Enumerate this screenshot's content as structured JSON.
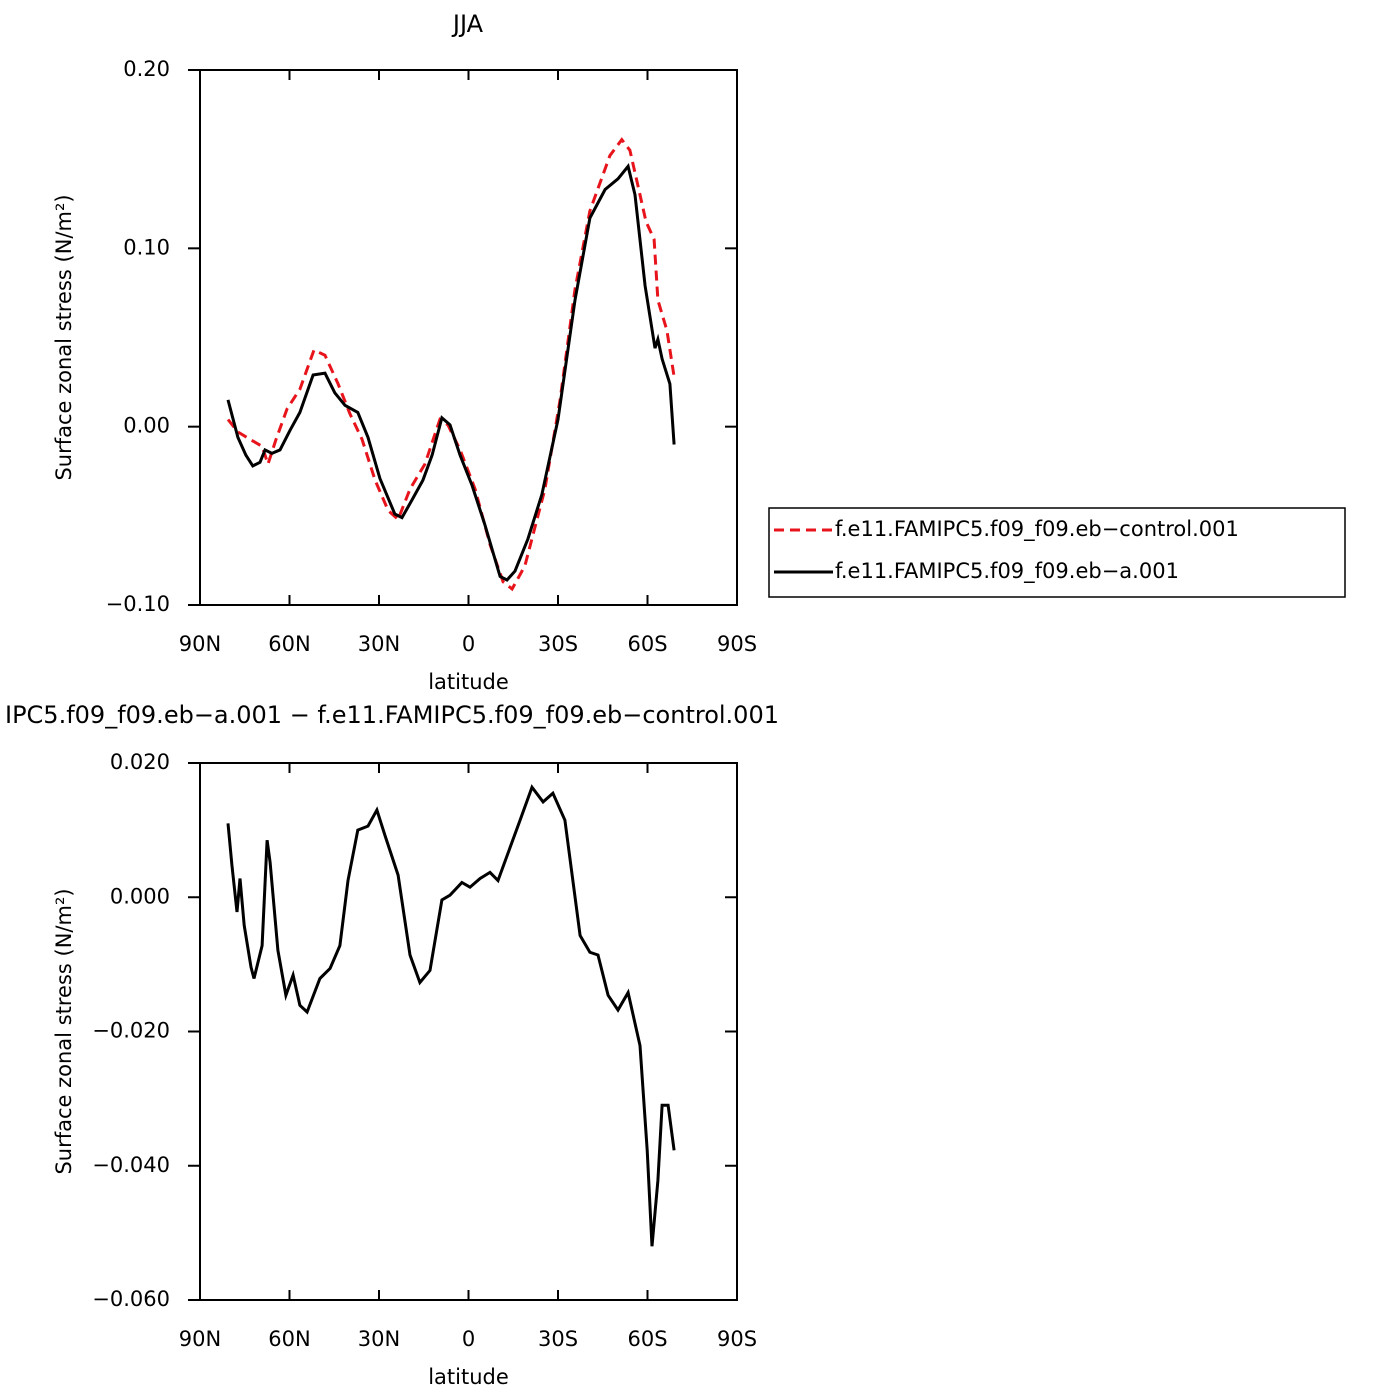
{
  "chart_data": [
    {
      "type": "line",
      "title": "JJA",
      "x_label": "latitude",
      "y_label": "Surface zonal stress (N/m²)",
      "xlim": [
        90,
        -90
      ],
      "xticks": [
        {
          "value": 90,
          "label": "90N"
        },
        {
          "value": 60,
          "label": "60N"
        },
        {
          "value": 30,
          "label": "30N"
        },
        0,
        {
          "value": -30,
          "label": "30S"
        },
        {
          "value": -60,
          "label": "60S"
        },
        {
          "value": -90,
          "label": "90S"
        }
      ],
      "ylim": [
        -0.1,
        0.2
      ],
      "yticks": [
        {
          "value": -0.1,
          "label": "−0.10"
        },
        {
          "value": 0,
          "label": "0.00"
        },
        {
          "value": 0.1,
          "label": "0.10"
        },
        {
          "value": 0.2,
          "label": "0.20"
        }
      ],
      "legend": "right",
      "series": [
        {
          "name": "f.e11.FAMIPC5.f09_f09.eb−control.001",
          "color": "#e8141c",
          "dash": "dashed",
          "x": [
            80.6,
            77.3,
            73.3,
            69.2,
            67.2,
            64.5,
            60.8,
            56.5,
            51.8,
            48.1,
            43.7,
            39.7,
            35.7,
            31.3,
            26.9,
            23.6,
            19.6,
            14.6,
            9.6,
            6.9,
            2.8,
            -2.2,
            -7.2,
            -11.6,
            -14.6,
            -18.9,
            -25.6,
            -30.7,
            -35.7,
            -40.7,
            -47.4,
            -51.4,
            -54.1,
            -56.8,
            -59.5,
            -62.2,
            -63.5,
            -66.5,
            -68.9
          ],
          "values": [
            0.004,
            -0.003,
            -0.007,
            -0.011,
            -0.021,
            -0.007,
            0.01,
            0.021,
            0.043,
            0.04,
            0.024,
            0.007,
            -0.007,
            -0.03,
            -0.047,
            -0.052,
            -0.035,
            -0.021,
            0.004,
            0.001,
            -0.013,
            -0.035,
            -0.066,
            -0.087,
            -0.091,
            -0.078,
            -0.035,
            0.015,
            0.077,
            0.121,
            0.152,
            0.161,
            0.155,
            0.135,
            0.115,
            0.105,
            0.071,
            0.054,
            0.028
          ]
        },
        {
          "name": "f.e11.FAMIPC5.f09_f09.eb−a.001",
          "color": "#000000",
          "dash": "solid",
          "x": [
            80.6,
            77.3,
            74.6,
            72.3,
            69.9,
            68.2,
            65.9,
            63.2,
            59.8,
            56.5,
            52.1,
            48.1,
            44.8,
            41.4,
            37.1,
            33.7,
            29.7,
            24.7,
            22.3,
            18.9,
            15.3,
            12.2,
            8.9,
            6.2,
            2.8,
            -1.2,
            -5.5,
            -10.6,
            -12.9,
            -15.6,
            -19.9,
            -24.6,
            -30.0,
            -35.7,
            -40.7,
            -45.8,
            -50.1,
            -53.5,
            -55.8,
            -59.2,
            -62.5,
            -63.5,
            -64.9,
            -67.5,
            -68.9
          ],
          "values": [
            0.015,
            -0.006,
            -0.016,
            -0.022,
            -0.02,
            -0.013,
            -0.015,
            -0.013,
            -0.002,
            0.008,
            0.029,
            0.03,
            0.019,
            0.012,
            0.008,
            -0.006,
            -0.029,
            -0.049,
            -0.051,
            -0.041,
            -0.03,
            -0.016,
            0.005,
            0.001,
            -0.016,
            -0.033,
            -0.055,
            -0.084,
            -0.086,
            -0.081,
            -0.063,
            -0.038,
            0.004,
            0.071,
            0.117,
            0.133,
            0.139,
            0.146,
            0.13,
            0.079,
            0.044,
            0.049,
            0.038,
            0.024,
            -0.01
          ]
        }
      ]
    },
    {
      "type": "line",
      "title": "IPC5.f09_f09.eb−a.001 − f.e11.FAMIPC5.f09_f09.eb−control.001",
      "x_label": "latitude",
      "y_label": "Surface zonal stress (N/m²)",
      "xlim": [
        90,
        -90
      ],
      "xticks": [
        {
          "value": 90,
          "label": "90N"
        },
        {
          "value": 60,
          "label": "60N"
        },
        {
          "value": 30,
          "label": "30N"
        },
        0,
        {
          "value": -30,
          "label": "30S"
        },
        {
          "value": -60,
          "label": "60S"
        },
        {
          "value": -90,
          "label": "90S"
        }
      ],
      "ylim": [
        -0.06,
        0.02
      ],
      "yticks": [
        {
          "value": -0.06,
          "label": "−0.060"
        },
        {
          "value": -0.04,
          "label": "−0.040"
        },
        {
          "value": -0.02,
          "label": "−0.020"
        },
        {
          "value": 0,
          "label": "0.000"
        },
        {
          "value": 0.02,
          "label": "0.020"
        }
      ],
      "series": [
        {
          "color": "#000000",
          "dash": "solid",
          "x": [
            80.6,
            79.3,
            77.6,
            76.6,
            75.2,
            72.9,
            71.9,
            69.2,
            67.5,
            66.5,
            63.9,
            61.2,
            58.8,
            56.5,
            54.1,
            49.8,
            46.4,
            43.1,
            40.4,
            37.1,
            33.7,
            30.7,
            28.0,
            23.6,
            19.6,
            16.3,
            12.9,
            8.9,
            6.2,
            2.2,
            -0.5,
            -3.9,
            -7.2,
            -9.9,
            -17.3,
            -21.3,
            -25.0,
            -28.3,
            -32.3,
            -37.4,
            -40.7,
            -43.4,
            -46.8,
            -50.1,
            -53.5,
            -57.5,
            -59.9,
            -61.5,
            -63.5,
            -64.9,
            -66.9,
            -68.9
          ],
          "values": [
            0.011,
            0.0048,
            -0.0022,
            0.0028,
            -0.0042,
            -0.0104,
            -0.0121,
            -0.0072,
            0.0085,
            0.0052,
            -0.0079,
            -0.0146,
            -0.0116,
            -0.0161,
            -0.0171,
            -0.0121,
            -0.0106,
            -0.0072,
            0.0025,
            0.01,
            0.0106,
            0.013,
            0.0092,
            0.0033,
            -0.0086,
            -0.0127,
            -0.0109,
            -0.0004,
            0.0003,
            0.0022,
            0.0015,
            0.0028,
            0.0037,
            0.0025,
            0.0115,
            0.0164,
            0.0142,
            0.0155,
            0.0115,
            -0.0057,
            -0.0082,
            -0.0086,
            -0.0146,
            -0.0168,
            -0.0142,
            -0.0221,
            -0.0377,
            -0.052,
            -0.0422,
            -0.031,
            -0.031,
            -0.0377
          ]
        }
      ]
    }
  ]
}
